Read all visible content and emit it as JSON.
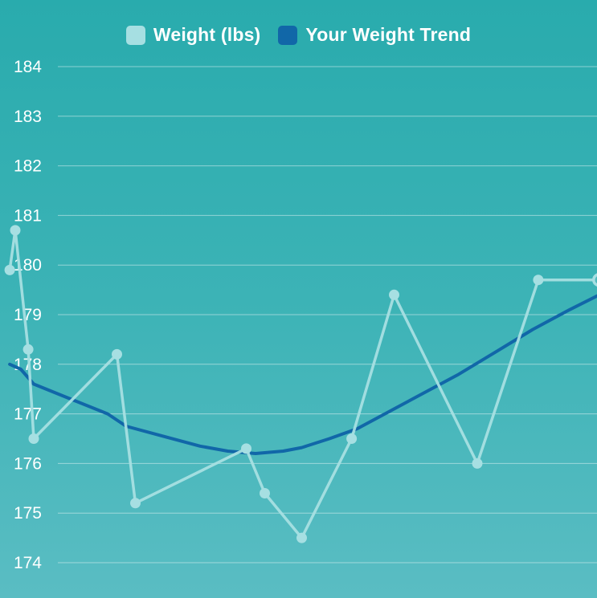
{
  "chart_data": {
    "type": "line",
    "title": "",
    "xlabel": "",
    "ylabel": "",
    "ylim": [
      174,
      184
    ],
    "yticks": [
      184,
      183,
      182,
      181,
      180,
      179,
      178,
      177,
      176,
      175,
      174
    ],
    "grid": true,
    "legend_position": "top-center",
    "series": [
      {
        "name": "Weight (lbs)",
        "color": "#a6dfe2",
        "style": "line-with-markers",
        "x": [
          -0.3,
          0,
          0.7,
          1,
          5.5,
          6.5,
          12.5,
          13.5,
          15.5,
          18.2,
          20.5,
          25,
          28.3,
          31.6
        ],
        "values": [
          179.9,
          180.7,
          178.3,
          176.5,
          178.2,
          175.2,
          176.3,
          175.4,
          174.5,
          176.5,
          179.4,
          176.0,
          179.7,
          179.7
        ],
        "last_point_marker": "hollow"
      },
      {
        "name": "Your Weight Trend",
        "color": "#1167a8",
        "style": "line",
        "x": [
          -0.3,
          0.3,
          1,
          3,
          5,
          6,
          8,
          10,
          11.5,
          13,
          14.5,
          15.5,
          17,
          18.5,
          20,
          22,
          24,
          26,
          28,
          30,
          31.6
        ],
        "values": [
          178.0,
          177.9,
          177.6,
          177.3,
          177.0,
          176.75,
          176.55,
          176.35,
          176.25,
          176.2,
          176.25,
          176.32,
          176.5,
          176.7,
          177.0,
          177.4,
          177.8,
          178.25,
          178.7,
          179.1,
          179.4
        ]
      }
    ]
  },
  "legend": {
    "items": [
      {
        "label": "Weight (lbs)",
        "color": "#a6dfe2"
      },
      {
        "label": "Your Weight Trend",
        "color": "#1167a8"
      }
    ]
  }
}
